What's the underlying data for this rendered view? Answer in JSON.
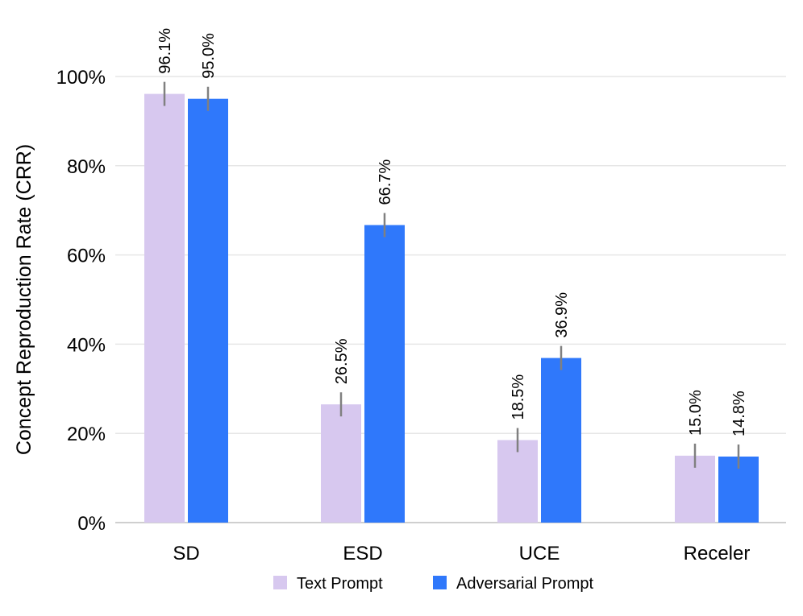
{
  "chart_data": {
    "type": "bar",
    "title": "",
    "xlabel": "",
    "ylabel": "Concept Reproduction Rate (CRR)",
    "categories": [
      "SD",
      "ESD",
      "UCE",
      "Receler"
    ],
    "ylim": [
      0,
      100
    ],
    "yticks": [
      0,
      20,
      40,
      60,
      80,
      100
    ],
    "ytick_labels": [
      "0%",
      "20%",
      "40%",
      "60%",
      "80%",
      "100%"
    ],
    "grid": true,
    "legend_position": "bottom",
    "series": [
      {
        "name": "Text Prompt",
        "color": "#d7c8ef",
        "values": [
          96.1,
          26.5,
          18.5,
          15.0
        ],
        "labels": [
          "96.1%",
          "26.5%",
          "18.5%",
          "15.0%"
        ],
        "error": [
          2.7,
          2.7,
          2.7,
          2.7
        ]
      },
      {
        "name": "Adversarial Prompt",
        "color": "#2f78fb",
        "values": [
          95.0,
          66.7,
          36.9,
          14.8
        ],
        "labels": [
          "95.0%",
          "66.7%",
          "36.9%",
          "14.8%"
        ],
        "error": [
          2.7,
          2.7,
          2.7,
          2.7
        ]
      }
    ],
    "error_bar_color": "#808080"
  }
}
